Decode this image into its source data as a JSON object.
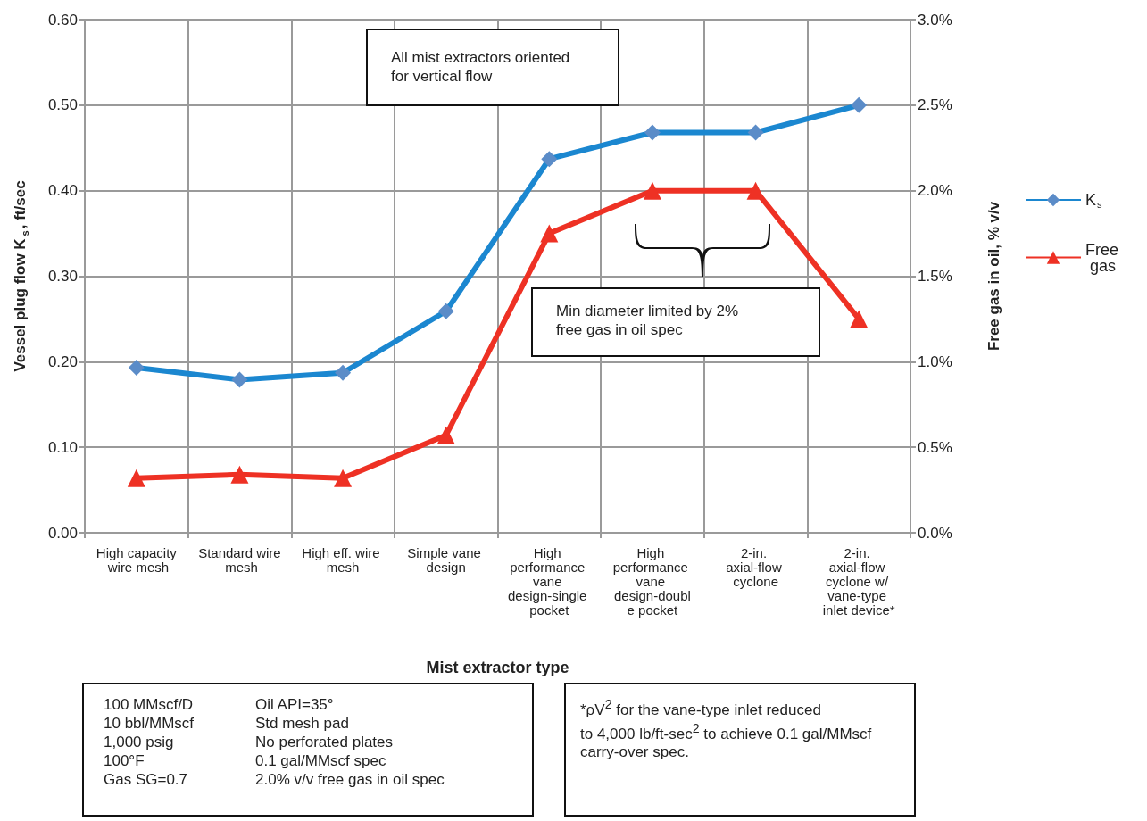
{
  "chart_data": {
    "type": "line",
    "categories": [
      "High capacity wire mesh",
      "Standard wire mesh",
      "High eff. wire mesh",
      "Simple vane design",
      "High performance vane design-single pocket",
      "High performance vane design-double pocket",
      "2-in. axial-flow cyclone",
      "2-in. axial-flow cyclone w/ vane-type inlet device*"
    ],
    "series": [
      {
        "name": "K$_{s}$",
        "color": "#1b87d0",
        "marker": "diamond",
        "values": [
          0.193,
          0.179,
          0.187,
          0.259,
          0.437,
          0.468,
          0.468,
          0.5
        ]
      },
      {
        "name": "Free gas",
        "color": "#ee3124",
        "marker": "triangle",
        "axis": "y2",
        "values": [
          0.32,
          0.34,
          0.32,
          0.57,
          1.75,
          2.0,
          2.0,
          1.25
        ]
      }
    ],
    "xlabel": "Mist extractor type",
    "ylabel": "Vessel plug flow K$_{s}$, ft/sec",
    "y2label": "Free gas in oil, % v/v",
    "ylim": [
      0,
      0.6
    ],
    "yticks": [
      {
        "value": 0,
        "label": "0.00"
      },
      {
        "value": 0.1,
        "label": "0.10"
      },
      {
        "value": 0.2,
        "label": "0.20"
      },
      {
        "value": 0.3,
        "label": "0.30"
      },
      {
        "value": 0.4,
        "label": "0.40"
      },
      {
        "value": 0.5,
        "label": "0.50"
      },
      {
        "value": 0.6,
        "label": "0.60"
      }
    ],
    "y2lim": [
      0,
      3
    ],
    "y2ticks": [
      {
        "value": 0,
        "label": "0.0%"
      },
      {
        "value": 0.5,
        "label": "0.5%"
      },
      {
        "value": 1,
        "label": "1.0%"
      },
      {
        "value": 1.5,
        "label": "1.5%"
      },
      {
        "value": 2,
        "label": "2.0%"
      },
      {
        "value": 2.5,
        "label": "2.5%"
      },
      {
        "value": 3,
        "label": "3.0%"
      }
    ],
    "grid": true,
    "legend": "right",
    "line_style": "solid",
    "annotations": [
      "All mist extractors oriented\nfor vertical flow",
      "Min diameter limited by 2%\nfree gas in oil spec",
      "100 MMscf/D\n10 bbl/MMscf\n1,000 psig\n100°F\nGas SG=0.7",
      "Oil API=35°\nStd mesh pad\nNo perforated plates\n0.1 gal/MMscf spec\n2.0% v/v free gas in oil spec",
      "*ρV$^{2}$ for the vane-type inlet reduced\nto 4,000 lb/ft-sec$^{2}$ to achieve 0.1 gal/MMscf\ncarry-over spec."
    ]
  }
}
